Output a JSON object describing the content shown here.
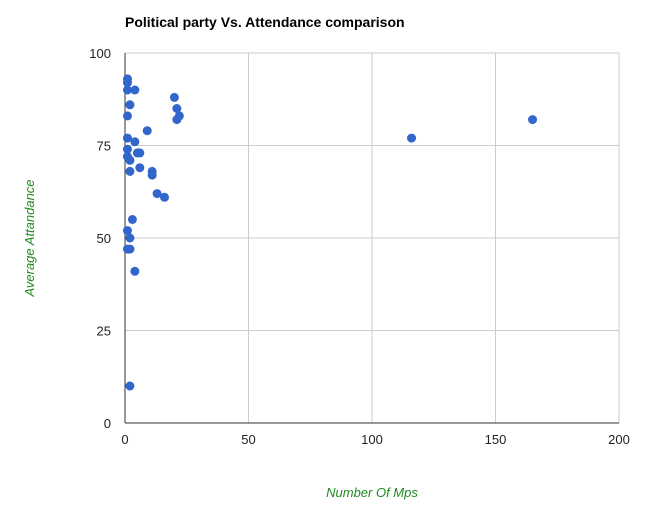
{
  "chart_data": {
    "type": "scatter",
    "title": "Political party Vs. Attendance comparison",
    "xlabel": "Number Of Mps",
    "ylabel": "Average Attandance",
    "xlim": [
      0,
      200
    ],
    "ylim": [
      0,
      100
    ],
    "xticks": [
      0,
      50,
      100,
      150,
      200
    ],
    "yticks": [
      0,
      25,
      50,
      75,
      100
    ],
    "xtick_labels": [
      "0",
      "50",
      "100",
      "150",
      "200"
    ],
    "ytick_labels": [
      "0",
      "25",
      "50",
      "75",
      "100"
    ],
    "grid": true,
    "legend": "none",
    "colors": {
      "point": "#3366cc",
      "axis_title": "#1f8a1f",
      "grid": "#cccccc",
      "axis": "#333333"
    },
    "series": [
      {
        "points": [
          [
            1,
            93
          ],
          [
            1,
            92
          ],
          [
            1,
            90
          ],
          [
            4,
            90
          ],
          [
            2,
            86
          ],
          [
            1,
            83
          ],
          [
            1,
            77
          ],
          [
            4,
            76
          ],
          [
            1,
            74
          ],
          [
            5,
            73
          ],
          [
            6,
            73
          ],
          [
            1,
            72
          ],
          [
            2,
            71
          ],
          [
            6,
            69
          ],
          [
            2,
            68
          ],
          [
            11,
            68
          ],
          [
            11,
            67
          ],
          [
            9,
            79
          ],
          [
            20,
            88
          ],
          [
            21,
            85
          ],
          [
            22,
            83
          ],
          [
            21,
            82
          ],
          [
            13,
            62
          ],
          [
            16,
            61
          ],
          [
            3,
            55
          ],
          [
            1,
            52
          ],
          [
            2,
            50
          ],
          [
            1,
            47
          ],
          [
            2,
            47
          ],
          [
            4,
            41
          ],
          [
            2,
            10
          ],
          [
            116,
            77
          ],
          [
            165,
            82
          ]
        ]
      }
    ]
  }
}
